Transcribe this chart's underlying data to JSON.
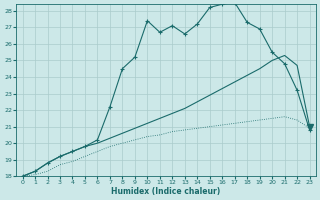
{
  "xlabel": "Humidex (Indice chaleur)",
  "bg_color": "#cce8e8",
  "grid_color": "#aacccc",
  "line_color": "#1a6b6b",
  "xlim": [
    -0.5,
    23.5
  ],
  "ylim": [
    18,
    28.4
  ],
  "yticks": [
    18,
    19,
    20,
    21,
    22,
    23,
    24,
    25,
    26,
    27,
    28
  ],
  "xticks": [
    0,
    1,
    2,
    3,
    4,
    5,
    6,
    7,
    8,
    9,
    10,
    11,
    12,
    13,
    14,
    15,
    16,
    17,
    18,
    19,
    20,
    21,
    22,
    23
  ],
  "curve_wavy_x": [
    0,
    1,
    2,
    3,
    4,
    5,
    6,
    7,
    8,
    9,
    10,
    11,
    12,
    13,
    14,
    15,
    16,
    17,
    18,
    19,
    20,
    21,
    22,
    23
  ],
  "curve_wavy_y": [
    18.0,
    18.3,
    18.8,
    19.2,
    19.5,
    19.8,
    20.2,
    22.2,
    24.5,
    25.2,
    27.4,
    26.7,
    27.1,
    26.6,
    27.2,
    28.2,
    28.4,
    28.5,
    27.3,
    26.9,
    25.5,
    24.8,
    23.2,
    20.8
  ],
  "curve_mid_x": [
    0,
    1,
    2,
    3,
    4,
    5,
    6,
    7,
    8,
    9,
    10,
    11,
    12,
    13,
    14,
    15,
    16,
    17,
    18,
    19,
    20,
    21,
    22,
    23
  ],
  "curve_mid_y": [
    18.0,
    18.3,
    18.8,
    19.2,
    19.5,
    19.8,
    20.0,
    20.3,
    20.6,
    20.9,
    21.2,
    21.5,
    21.8,
    22.1,
    22.5,
    22.9,
    23.3,
    23.7,
    24.1,
    24.5,
    25.0,
    25.3,
    24.7,
    21.0
  ],
  "curve_low_x": [
    0,
    1,
    2,
    3,
    4,
    5,
    6,
    7,
    8,
    9,
    10,
    11,
    12,
    13,
    14,
    15,
    16,
    17,
    18,
    19,
    20,
    21,
    22,
    23
  ],
  "curve_low_y": [
    18.0,
    18.1,
    18.3,
    18.7,
    18.9,
    19.2,
    19.5,
    19.8,
    20.0,
    20.2,
    20.4,
    20.5,
    20.7,
    20.8,
    20.9,
    21.0,
    21.1,
    21.2,
    21.3,
    21.4,
    21.5,
    21.6,
    21.4,
    20.9
  ]
}
